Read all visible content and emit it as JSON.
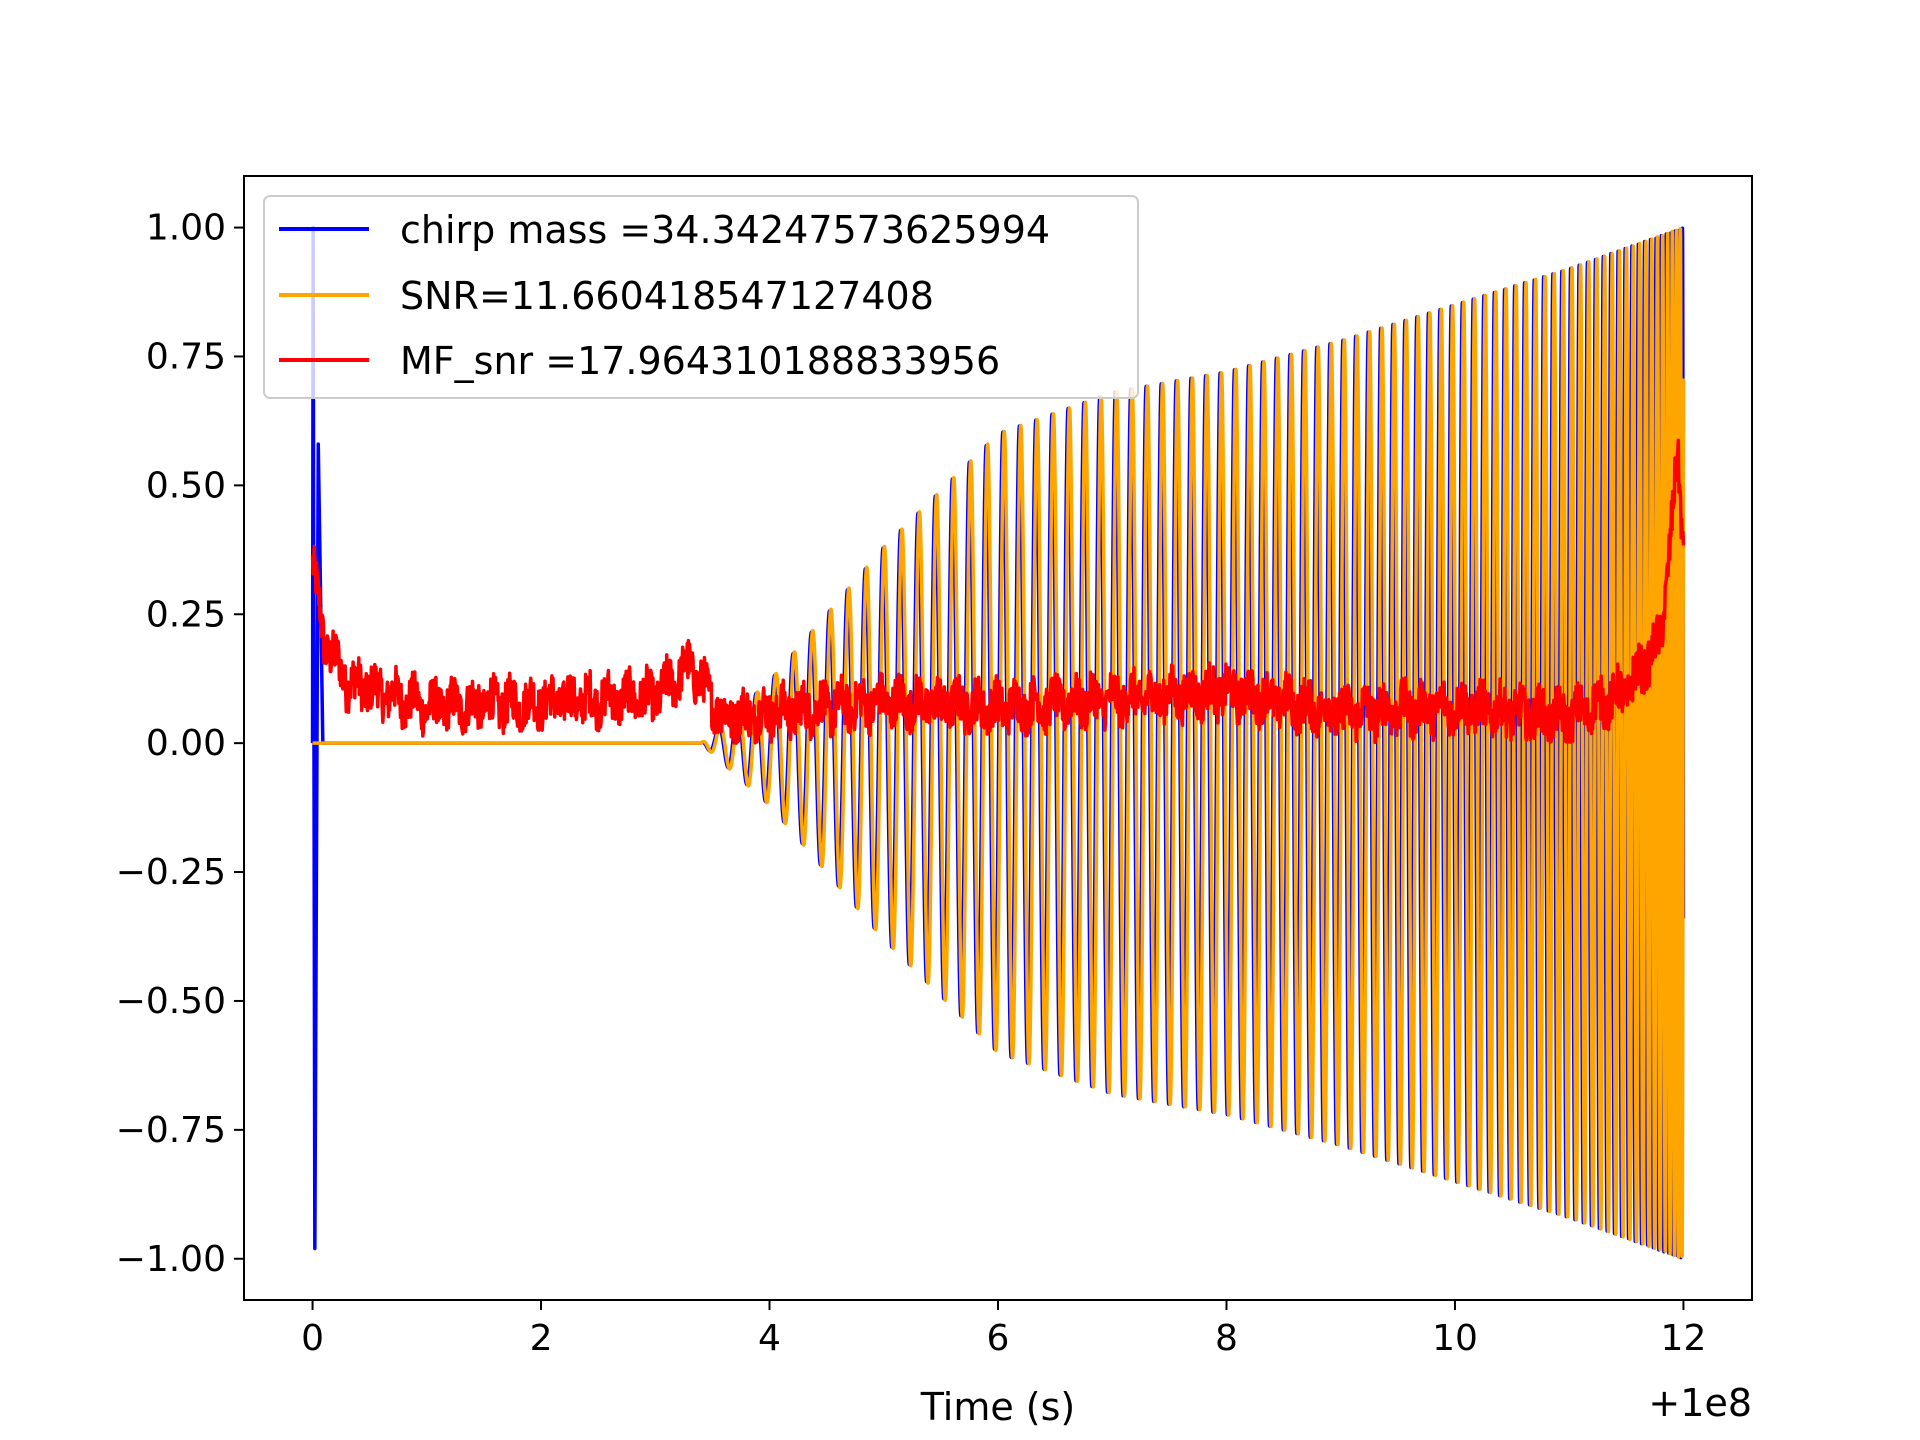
{
  "chart_data": {
    "type": "line",
    "xlabel": "Time (s)",
    "ylabel": "",
    "x_offset_label": "+1e8",
    "x_offset": 100000000,
    "xlim": [
      -0.6,
      12.6
    ],
    "ylim": [
      -1.08,
      1.1
    ],
    "xticks": [
      0,
      2,
      4,
      6,
      8,
      10,
      12
    ],
    "yticks": [
      1.0,
      0.75,
      0.5,
      0.25,
      0.0,
      -0.25,
      -0.5,
      -0.75,
      -1.0
    ],
    "xtick_labels": [
      "0",
      "2",
      "4",
      "6",
      "8",
      "10",
      "12"
    ],
    "ytick_labels": [
      "1.00",
      "0.75",
      "0.50",
      "0.25",
      "0.00",
      "−0.25",
      "−0.50",
      "−0.75",
      "−1.00"
    ],
    "grid": false,
    "legend_position": "top-left",
    "series": [
      {
        "name": "chirp mass =34.34247573625994",
        "color": "#0000ff",
        "shape": "chirp-with-initial-spike",
        "signal_start": 3.4,
        "end": 12.0,
        "amplitude_envelope": [
          [
            3.4,
            0.0
          ],
          [
            4.0,
            0.12
          ],
          [
            5.0,
            0.38
          ],
          [
            6.0,
            0.6
          ],
          [
            7.0,
            0.68
          ],
          [
            8.0,
            0.72
          ],
          [
            9.0,
            0.78
          ],
          [
            10.0,
            0.85
          ],
          [
            11.0,
            0.92
          ],
          [
            12.0,
            1.0
          ]
        ],
        "initial_spike": {
          "t": 0.0,
          "peak": 1.0,
          "trough": -0.98,
          "secondary_peak": 0.58
        }
      },
      {
        "name": "SNR=11.660418547127408",
        "color": "#ffa500",
        "shape": "chirp",
        "signal_start": 3.4,
        "end": 12.0,
        "amplitude_envelope": [
          [
            3.4,
            0.0
          ],
          [
            4.0,
            0.12
          ],
          [
            5.0,
            0.38
          ],
          [
            6.0,
            0.6
          ],
          [
            7.0,
            0.68
          ],
          [
            8.0,
            0.72
          ],
          [
            9.0,
            0.78
          ],
          [
            10.0,
            0.85
          ],
          [
            11.0,
            0.92
          ],
          [
            12.0,
            1.0
          ]
        ]
      },
      {
        "name": "MF_snr =17.964310188833956",
        "color": "#ff0000",
        "shape": "noisy",
        "start": 0.0,
        "end": 12.0,
        "keypoints": [
          [
            0.0,
            0.35
          ],
          [
            0.1,
            0.2
          ],
          [
            0.3,
            0.12
          ],
          [
            1.0,
            0.07
          ],
          [
            2.0,
            0.08
          ],
          [
            3.0,
            0.09
          ],
          [
            3.3,
            0.15
          ],
          [
            3.6,
            0.05
          ],
          [
            5.0,
            0.08
          ],
          [
            6.0,
            0.07
          ],
          [
            8.0,
            0.1
          ],
          [
            9.0,
            0.06
          ],
          [
            10.0,
            0.07
          ],
          [
            11.0,
            0.05
          ],
          [
            11.5,
            0.1
          ],
          [
            11.8,
            0.2
          ],
          [
            11.95,
            0.55
          ],
          [
            12.0,
            0.37
          ]
        ]
      }
    ]
  }
}
